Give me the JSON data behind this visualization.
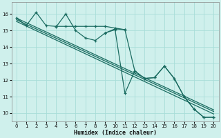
{
  "xlabel": "Humidex (Indice chaleur)",
  "xlim": [
    -0.5,
    20.5
  ],
  "ylim": [
    9.5,
    16.7
  ],
  "yticks": [
    10,
    11,
    12,
    13,
    14,
    15,
    16
  ],
  "xticks": [
    0,
    1,
    2,
    3,
    4,
    5,
    6,
    7,
    8,
    9,
    10,
    11,
    12,
    13,
    14,
    15,
    16,
    17,
    18,
    19,
    20
  ],
  "bg_color": "#cff0ec",
  "grid_color": "#a8ddd8",
  "line_color": "#1a6b60",
  "reg_lines": [
    {
      "x": [
        0,
        20
      ],
      "y": [
        15.75,
        10.2
      ]
    },
    {
      "x": [
        0,
        20
      ],
      "y": [
        15.65,
        10.1
      ]
    },
    {
      "x": [
        0,
        20
      ],
      "y": [
        15.55,
        9.95
      ]
    }
  ],
  "jagged1_x": [
    0,
    1,
    2,
    3,
    4,
    5,
    6,
    7,
    8,
    9,
    10,
    11
  ],
  "jagged1_y": [
    15.75,
    15.3,
    16.1,
    15.3,
    15.25,
    15.25,
    15.25,
    15.25,
    15.25,
    15.25,
    15.15,
    15.05
  ],
  "jagged2_x": [
    4,
    5,
    6,
    7,
    8,
    9,
    10,
    11,
    12,
    13,
    14,
    15,
    16,
    17,
    18,
    19,
    20
  ],
  "jagged2_y": [
    15.2,
    16.0,
    15.0,
    14.55,
    14.4,
    14.85,
    15.1,
    15.05,
    12.55,
    12.1,
    12.15,
    12.85,
    12.1,
    11.0,
    10.25,
    9.75,
    9.75
  ],
  "jagged3_x": [
    9,
    10,
    11,
    12,
    13,
    14,
    15,
    16,
    17,
    18,
    19,
    20
  ],
  "jagged3_y": [
    14.85,
    15.05,
    11.2,
    12.55,
    12.1,
    12.15,
    12.85,
    12.1,
    11.0,
    10.25,
    9.75,
    9.75
  ]
}
